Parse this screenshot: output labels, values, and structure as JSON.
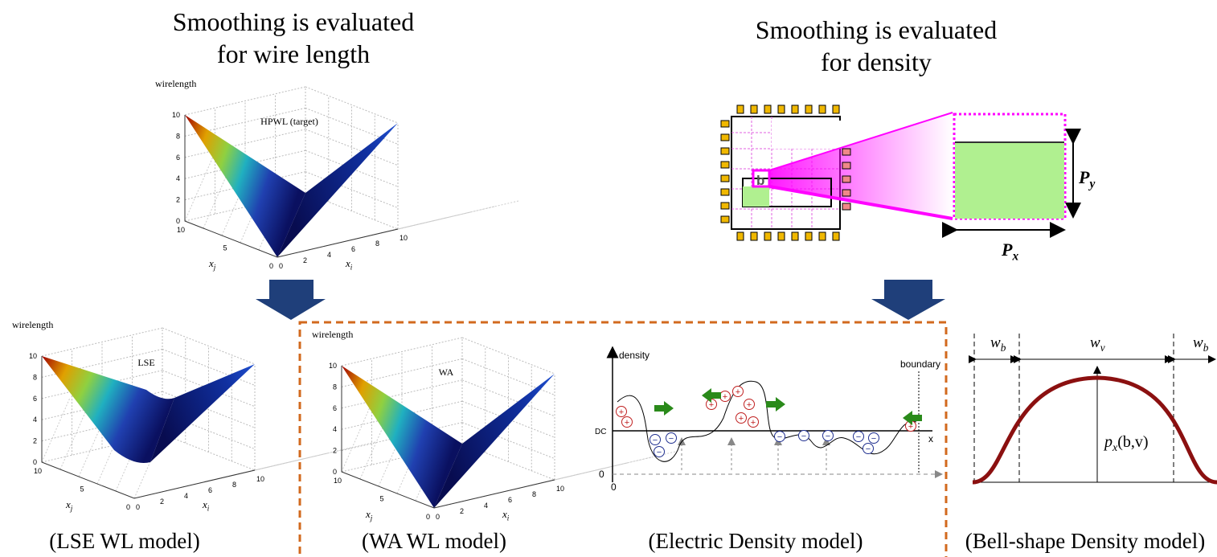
{
  "wirelength_section": {
    "title_lines": [
      "Smoothing is evaluated",
      "for wire length"
    ]
  },
  "density_section": {
    "title_lines": [
      "Smoothing is evaluated",
      "for density"
    ]
  },
  "plots": [
    {
      "z_label": "wirelength",
      "surface_label": "HPWL (target)",
      "z_ticks": [
        10,
        8,
        6,
        4,
        2,
        0
      ],
      "xj_ticks": [
        10,
        5,
        0
      ],
      "xi_ticks": [
        0,
        2,
        4,
        6,
        8,
        10
      ],
      "xj_label": {
        "base": "x",
        "sub": "j"
      },
      "xi_label": {
        "base": "x",
        "sub": "i"
      }
    },
    {
      "z_label": "wirelength",
      "surface_label": "LSE",
      "z_ticks": [
        10,
        8,
        6,
        4,
        2,
        0
      ],
      "xj_ticks": [
        10,
        5,
        0
      ],
      "xi_ticks": [
        0,
        2,
        4,
        6,
        8,
        10
      ],
      "xj_label": {
        "base": "x",
        "sub": "j"
      },
      "xi_label": {
        "base": "x",
        "sub": "i"
      }
    },
    {
      "z_label": "wirelength",
      "surface_label": "WA",
      "z_ticks": [
        10,
        8,
        6,
        4,
        2,
        0
      ],
      "xj_ticks": [
        10,
        5,
        0
      ],
      "xi_ticks": [
        0,
        2,
        4,
        6,
        8,
        10
      ],
      "xj_label": {
        "base": "x",
        "sub": "j"
      },
      "xi_label": {
        "base": "x",
        "sub": "i"
      }
    }
  ],
  "bin_diagram": {
    "cell_label": "b",
    "py_label": {
      "base": "P",
      "sub": "y"
    },
    "px_label": {
      "base": "P",
      "sub": "x"
    }
  },
  "electric_density": {
    "y_label": "density",
    "x_label": "x",
    "dc_label": "DC",
    "origin_label": "0",
    "boundary_label": "boundary",
    "plus_sign": "+",
    "minus_sign": "−"
  },
  "bell_shape": {
    "wb_label": {
      "base": "w",
      "sub": "b"
    },
    "wv_label": {
      "base": "w",
      "sub": "v"
    },
    "potential_label": {
      "base": "p",
      "sub": "x",
      "args": "(b,v)"
    }
  },
  "captions": [
    "(LSE WL model)",
    "(WA WL model)",
    "(Electric Density model)",
    "(Bell-shape Density model)"
  ]
}
